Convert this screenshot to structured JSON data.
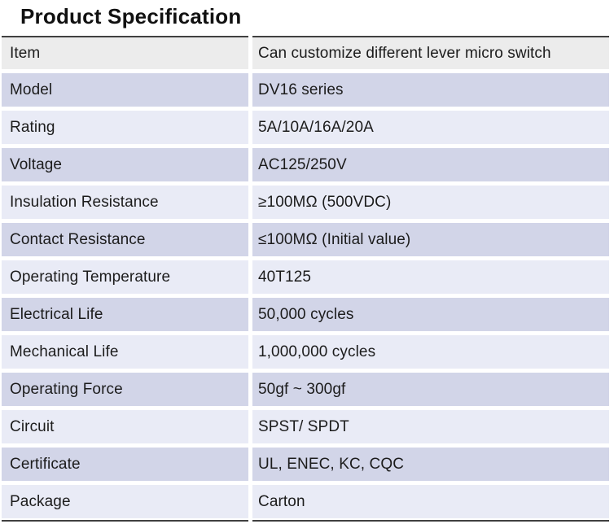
{
  "page": {
    "title": "Product Specification"
  },
  "colors": {
    "header_row_bg": "#ececec",
    "dark_row_bg": "#d2d5e8",
    "light_row_bg": "#e9ebf6",
    "rule": "#404040",
    "text": "#1c1c1c",
    "page_bg": "#ffffff"
  },
  "table": {
    "rows": [
      {
        "label": "Item",
        "value": "Can customize different lever micro switch"
      },
      {
        "label": "Model",
        "value": "DV16 series"
      },
      {
        "label": "Rating",
        "value": "5A/10A/16A/20A"
      },
      {
        "label": "Voltage",
        "value": "AC125/250V"
      },
      {
        "label": "Insulation Resistance",
        "value": "≥100MΩ (500VDC)"
      },
      {
        "label": "Contact Resistance",
        "value": "≤100MΩ (Initial value)"
      },
      {
        "label": "Operating Temperature",
        "value": "40T125"
      },
      {
        "label": "Electrical Life",
        "value": "50,000 cycles"
      },
      {
        "label": "Mechanical Life",
        "value": "1,000,000 cycles"
      },
      {
        "label": "Operating Force",
        "value": "50gf ~ 300gf"
      },
      {
        "label": "Circuit",
        "value": "SPST/ SPDT"
      },
      {
        "label": "Certificate",
        "value": "UL, ENEC, KC, CQC"
      },
      {
        "label": "Package",
        "value": "Carton"
      }
    ]
  }
}
